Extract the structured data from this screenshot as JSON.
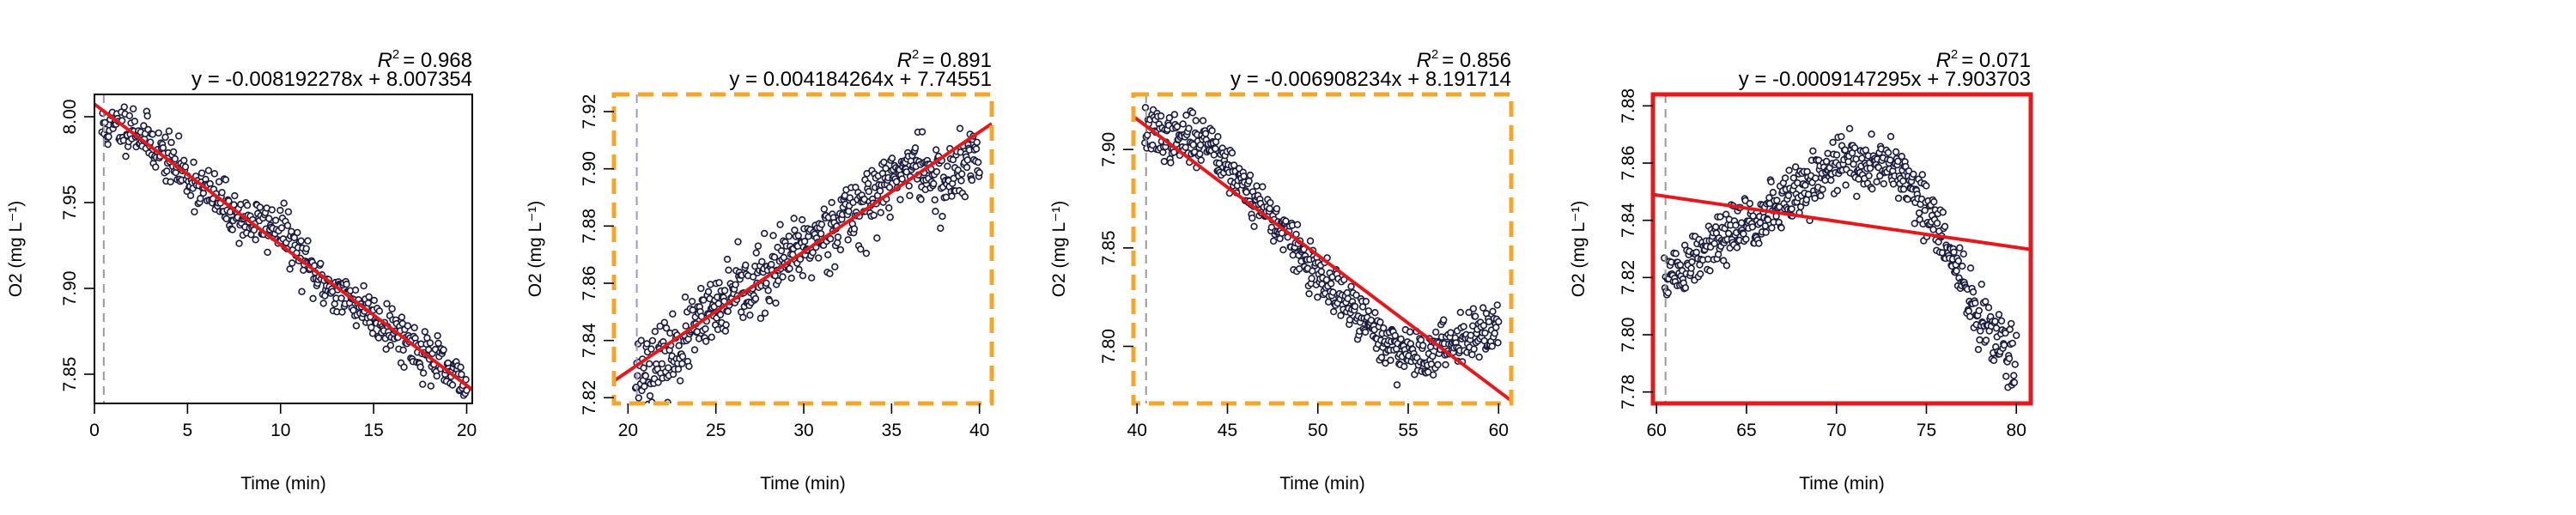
{
  "figure": {
    "panels": [
      {
        "id": "panel-1",
        "r2_label": "= 0.968",
        "equation": "y = -0.008192278x + 8.007354",
        "frame_color": "#000000",
        "frame_style": "solid",
        "xlabel": "Time (min)",
        "ylabel": "O2 (mg L⁻¹)",
        "x_ticks": [
          "0",
          "5",
          "10",
          "15",
          "20"
        ],
        "y_ticks": [
          "7.85",
          "7.90",
          "7.95",
          "8.00"
        ]
      },
      {
        "id": "panel-2",
        "r2_label": "= 0.891",
        "equation": "y = 0.004184264x + 7.74551",
        "frame_color": "#F4A62A",
        "frame_style": "dashed",
        "xlabel": "Time (min)",
        "ylabel": "O2 (mg L⁻¹)",
        "x_ticks": [
          "20",
          "25",
          "30",
          "35",
          "40"
        ],
        "y_ticks": [
          "7.82",
          "7.84",
          "7.86",
          "7.88",
          "7.90",
          "7.92"
        ]
      },
      {
        "id": "panel-3",
        "r2_label": "= 0.856",
        "equation": "y = -0.006908234x + 8.191714",
        "frame_color": "#F4A62A",
        "frame_style": "dashed",
        "xlabel": "Time (min)",
        "ylabel": "O2 (mg L⁻¹)",
        "x_ticks": [
          "40",
          "45",
          "50",
          "55",
          "60"
        ],
        "y_ticks": [
          "7.80",
          "7.85",
          "7.90"
        ]
      },
      {
        "id": "panel-4",
        "r2_label": "= 0.071",
        "equation": "y = -0.0009147295x + 7.903703",
        "frame_color": "#E8171B",
        "frame_style": "solid",
        "xlabel": "Time (min)",
        "ylabel": "O2 (mg L⁻¹)",
        "x_ticks": [
          "60",
          "65",
          "70",
          "75",
          "80"
        ],
        "y_ticks": [
          "7.78",
          "7.80",
          "7.82",
          "7.84",
          "7.86",
          "7.88"
        ]
      }
    ]
  },
  "chart_data": [
    {
      "type": "scatter",
      "x_range": [
        0,
        20
      ],
      "xlim": [
        0,
        20.3
      ],
      "ylim": [
        7.833,
        8.013
      ],
      "fit": {
        "slope": -0.008192278,
        "intercept": 8.007354
      },
      "vline_x": 0.5,
      "trend": {
        "x": [
          0.4,
          2,
          5,
          8,
          10,
          12,
          15,
          18,
          20
        ],
        "y": [
          7.993,
          7.995,
          7.965,
          7.94,
          7.935,
          7.905,
          7.885,
          7.86,
          7.842
        ]
      },
      "noise": 0.007,
      "n_points": 500,
      "seed": 11,
      "colors": {
        "points": "#1a1a40",
        "fit": "#E8171B",
        "vline": "#9a9a9a"
      }
    },
    {
      "type": "scatter",
      "x_range": [
        20,
        40
      ],
      "xlim": [
        19.2,
        40.7
      ],
      "ylim": [
        7.818,
        7.926
      ],
      "fit": {
        "slope": 0.004184264,
        "intercept": 7.74551
      },
      "vline_x": 20.5,
      "trend": {
        "x": [
          20.5,
          22,
          24,
          26,
          28,
          30,
          32,
          34,
          36,
          38,
          40
        ],
        "y": [
          7.83,
          7.832,
          7.845,
          7.855,
          7.863,
          7.872,
          7.882,
          7.89,
          7.902,
          7.895,
          7.905
        ]
      },
      "noise": 0.006,
      "n_points": 560,
      "seed": 23,
      "colors": {
        "points": "#1a1a40",
        "fit": "#E8171B",
        "vline": "#9999cc"
      }
    },
    {
      "type": "scatter",
      "x_range": [
        40,
        60
      ],
      "xlim": [
        39.8,
        60.7
      ],
      "ylim": [
        7.771,
        7.928
      ],
      "fit": {
        "slope": -0.006908234,
        "intercept": 8.191714
      },
      "vline_x": 40.5,
      "trend": {
        "x": [
          40.5,
          42,
          44,
          46,
          48,
          50,
          52,
          54,
          56,
          58,
          60
        ],
        "y": [
          7.91,
          7.905,
          7.905,
          7.88,
          7.86,
          7.835,
          7.818,
          7.8,
          7.795,
          7.805,
          7.812
        ]
      },
      "noise": 0.006,
      "n_points": 560,
      "seed": 37,
      "colors": {
        "points": "#1a1a40",
        "fit": "#E8171B",
        "vline": "#9a9a9a"
      }
    },
    {
      "type": "scatter",
      "x_range": [
        60,
        80
      ],
      "xlim": [
        59.8,
        80.8
      ],
      "ylim": [
        7.776,
        7.884
      ],
      "fit": {
        "slope": -0.0009147295,
        "intercept": 7.903703
      },
      "vline_x": 60.5,
      "trend": {
        "x": [
          60.5,
          62,
          64,
          66,
          68,
          70,
          72,
          74,
          76,
          78,
          80
        ],
        "y": [
          7.82,
          7.825,
          7.835,
          7.842,
          7.85,
          7.86,
          7.86,
          7.855,
          7.832,
          7.805,
          7.79
        ]
      },
      "noise": 0.005,
      "n_points": 560,
      "seed": 51,
      "colors": {
        "points": "#1a1a40",
        "fit": "#E8171B",
        "vline": "#9a9a9a"
      }
    }
  ]
}
